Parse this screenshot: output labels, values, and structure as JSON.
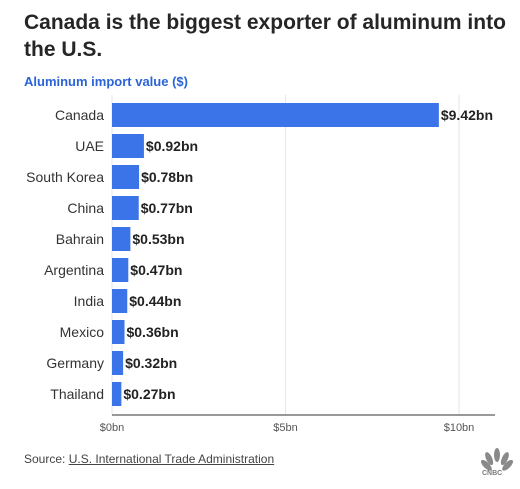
{
  "title": "Canada is the biggest exporter of aluminum into the U.S.",
  "subtitle": "Aluminum import value ($)",
  "source": {
    "prefix": "Source:",
    "link": "U.S. International Trade Administration"
  },
  "logo": {
    "text": "CNBC",
    "icon": "peacock-icon"
  },
  "colors": {
    "bar": "#3b74e8",
    "subtitle": "#2a63d8",
    "grid": "#e6e6e6"
  },
  "chart_data": {
    "type": "bar",
    "orientation": "horizontal",
    "categories": [
      "Canada",
      "UAE",
      "South Korea",
      "China",
      "Bahrain",
      "Argentina",
      "India",
      "Mexico",
      "Germany",
      "Thailand"
    ],
    "values": [
      9.42,
      0.92,
      0.78,
      0.77,
      0.53,
      0.47,
      0.44,
      0.36,
      0.32,
      0.27
    ],
    "value_labels": [
      "$9.42bn",
      "$0.92bn",
      "$0.78bn",
      "$0.77bn",
      "$0.53bn",
      "$0.47bn",
      "$0.44bn",
      "$0.36bn",
      "$0.32bn",
      "$0.27bn"
    ],
    "xticks": [
      0,
      5,
      10
    ],
    "xtick_labels": [
      "$0bn",
      "$5bn",
      "$10bn"
    ],
    "xlim": [
      0,
      11
    ],
    "grid": true
  }
}
